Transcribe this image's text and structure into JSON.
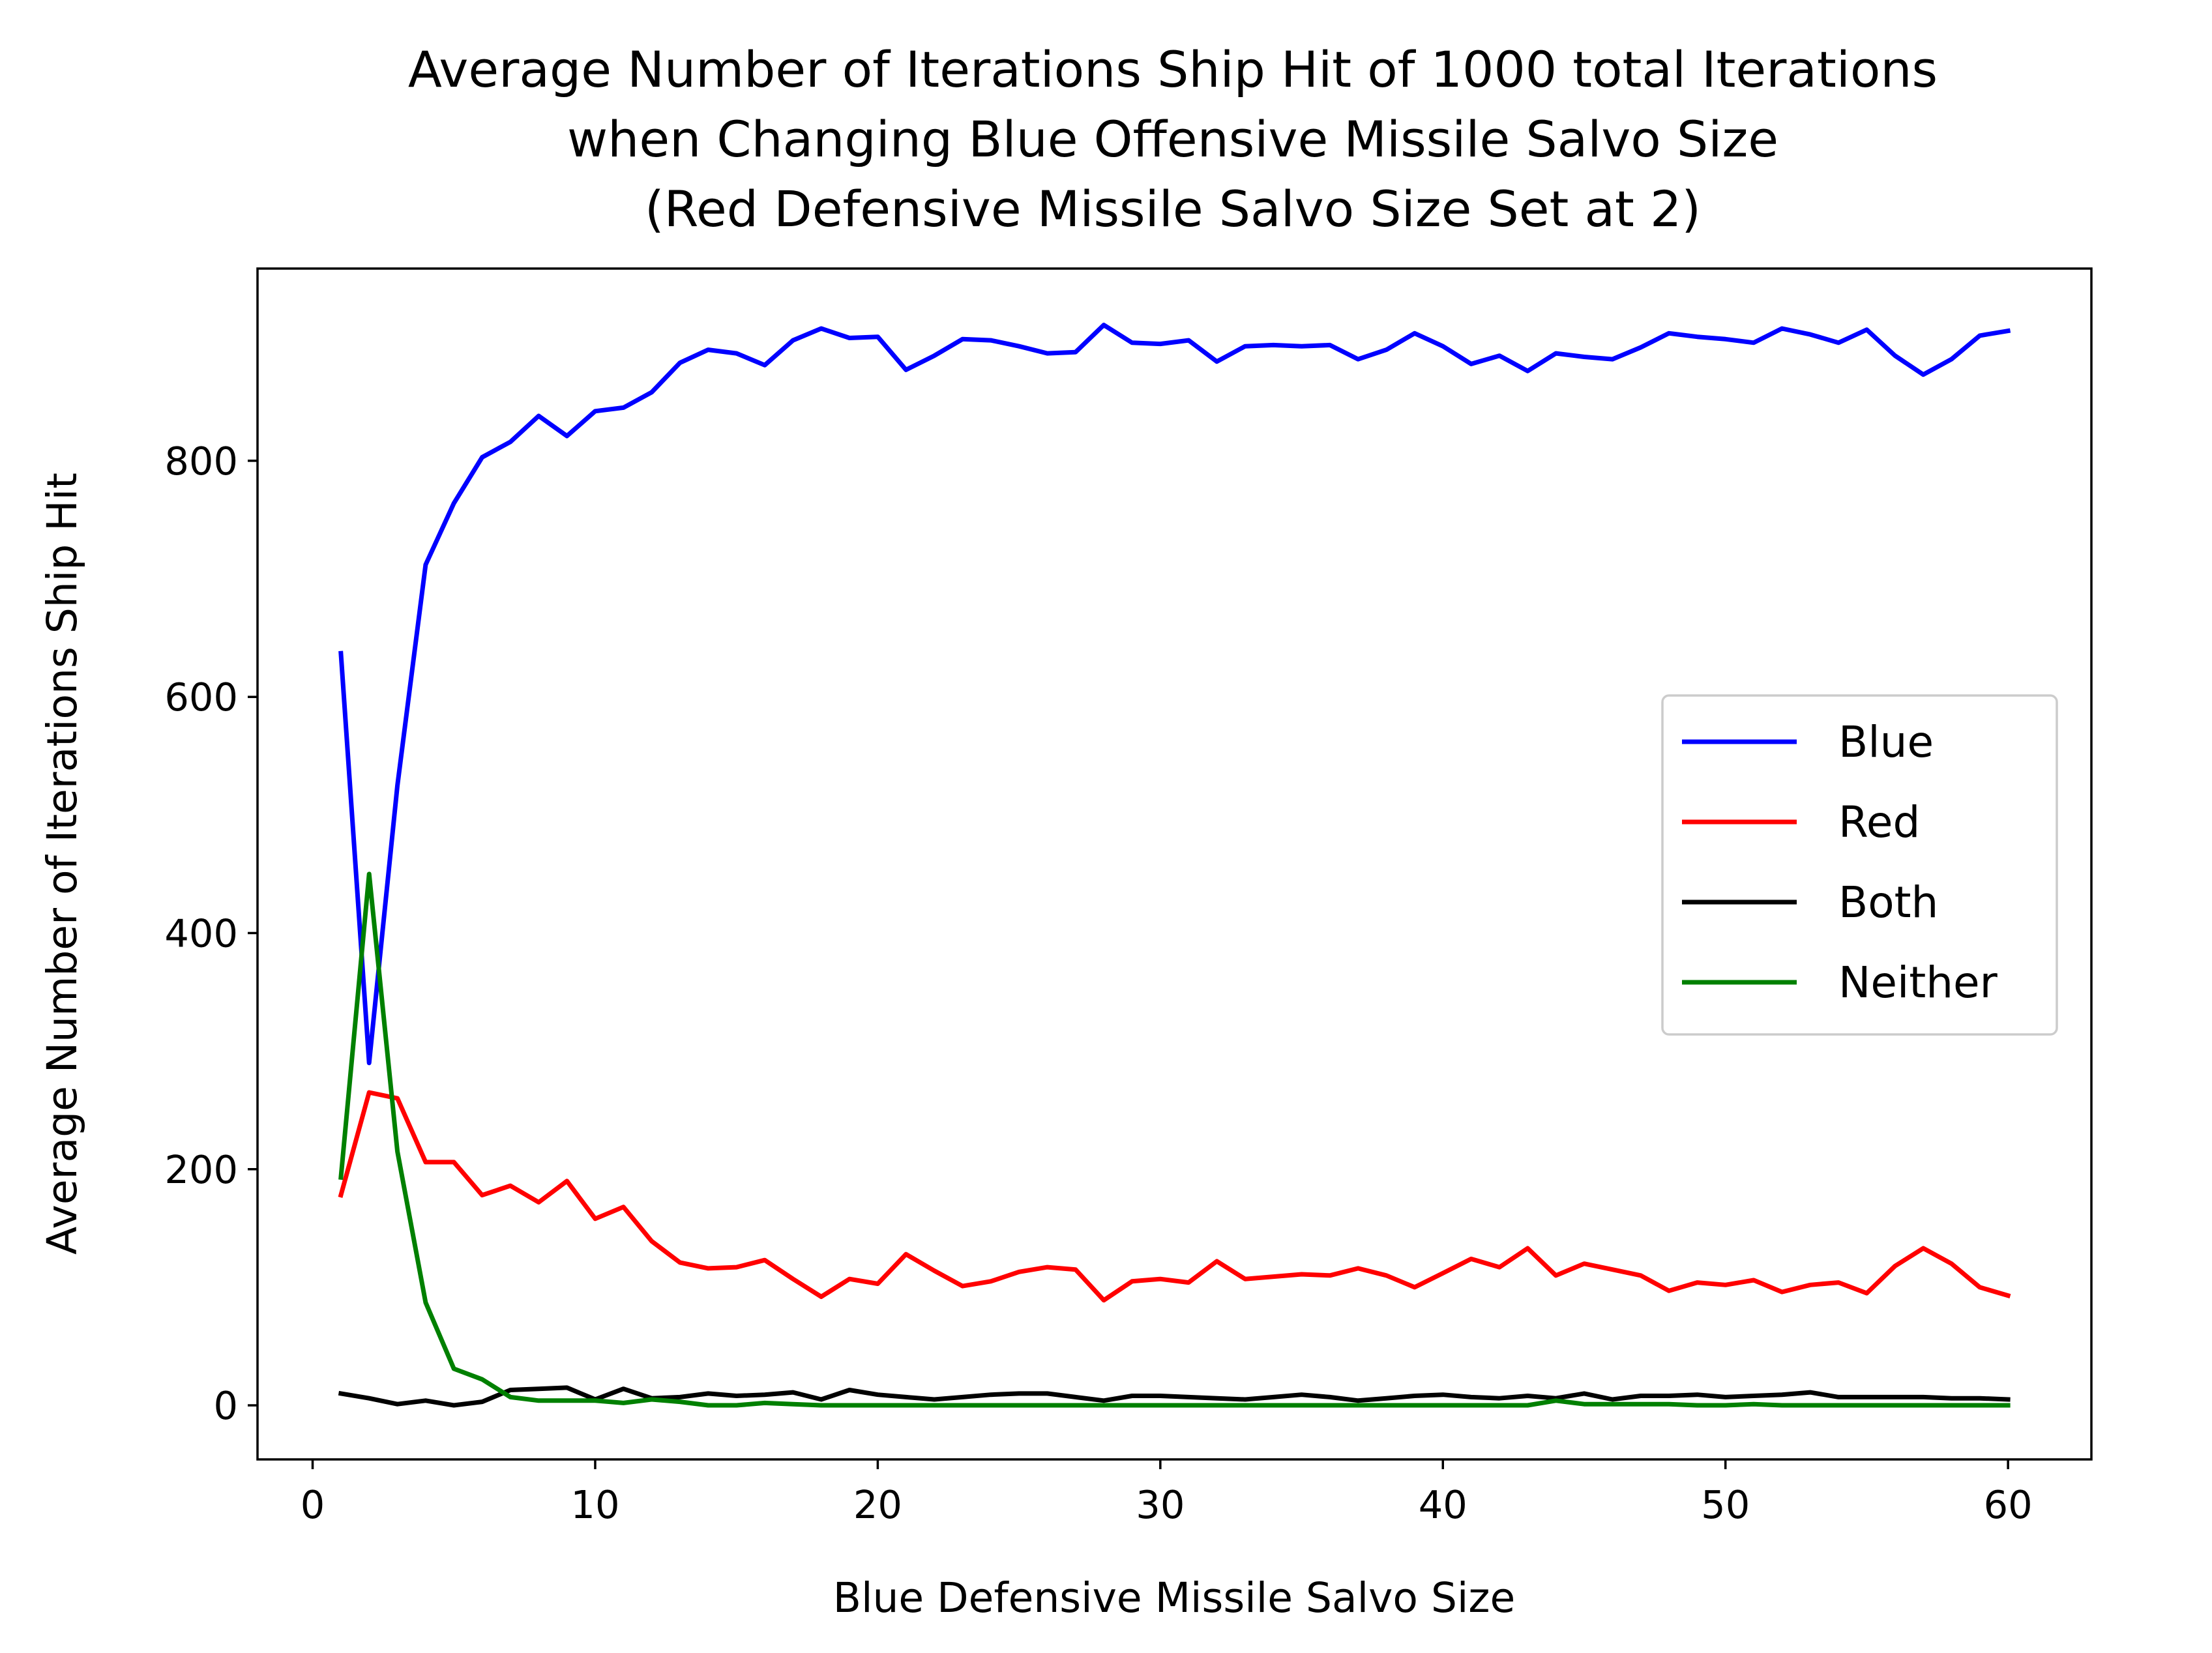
{
  "chart_data": {
    "type": "line",
    "title_lines": [
      "Average Number of Iterations Ship Hit of 1000 total Iterations",
      "when Changing Blue Offensive Missile Salvo Size",
      "(Red Defensive Missile Salvo Size Set at 2)"
    ],
    "xlabel": "Blue Defensive Missile Salvo Size",
    "ylabel": "Average Number of Iterations Ship Hit",
    "xlim": [
      -1.95,
      62.95
    ],
    "ylim": [
      -45.8,
      962.8
    ],
    "x_ticks": [
      0,
      10,
      20,
      30,
      40,
      50,
      60
    ],
    "x_tick_labels": [
      "0",
      "10",
      "20",
      "30",
      "40",
      "50",
      "60"
    ],
    "y_ticks": [
      0,
      200,
      400,
      600,
      800
    ],
    "y_tick_labels": [
      "0",
      "200",
      "400",
      "600",
      "800"
    ],
    "grid": false,
    "legend_position": "center-right",
    "x": [
      1,
      2,
      3,
      4,
      5,
      6,
      7,
      8,
      9,
      10,
      11,
      12,
      13,
      14,
      15,
      16,
      17,
      18,
      19,
      20,
      21,
      22,
      23,
      24,
      25,
      26,
      27,
      28,
      29,
      30,
      31,
      32,
      33,
      34,
      35,
      36,
      37,
      38,
      39,
      40,
      41,
      42,
      43,
      44,
      45,
      46,
      47,
      48,
      49,
      50,
      51,
      52,
      53,
      54,
      55,
      56,
      57,
      58,
      59,
      60
    ],
    "series": [
      {
        "name": "Blue",
        "color": "#0000ff",
        "values": [
          637,
          290,
          525,
          712,
          764,
          803,
          816,
          838,
          821,
          842,
          845,
          858,
          883,
          894,
          891,
          881,
          902,
          912,
          904,
          905,
          877,
          889,
          903,
          902,
          897,
          891,
          892,
          915,
          900,
          899,
          902,
          884,
          897,
          898,
          897,
          898,
          886,
          894,
          908,
          897,
          882,
          889,
          876,
          891,
          888,
          886,
          896,
          908,
          905,
          903,
          900,
          912,
          907,
          900,
          911,
          889,
          873,
          886,
          906,
          910
        ]
      },
      {
        "name": "Red",
        "color": "#ff0000",
        "values": [
          178,
          265,
          260,
          206,
          206,
          178,
          186,
          172,
          190,
          158,
          168,
          139,
          121,
          116,
          117,
          123,
          107,
          92,
          107,
          103,
          128,
          114,
          101,
          105,
          113,
          117,
          115,
          89,
          105,
          107,
          104,
          122,
          107,
          109,
          111,
          110,
          116,
          110,
          100,
          112,
          124,
          117,
          133,
          110,
          120,
          115,
          110,
          97,
          104,
          102,
          106,
          96,
          102,
          104,
          95,
          118,
          133,
          120,
          100,
          93
        ]
      },
      {
        "name": "Both",
        "color": "#000000",
        "values": [
          10,
          6,
          1,
          4,
          0,
          3,
          13,
          14,
          15,
          5,
          14,
          6,
          7,
          10,
          8,
          9,
          11,
          5,
          13,
          9,
          7,
          5,
          7,
          9,
          10,
          10,
          7,
          4,
          8,
          8,
          7,
          6,
          5,
          7,
          9,
          7,
          4,
          6,
          8,
          9,
          7,
          6,
          8,
          6,
          10,
          5,
          8,
          8,
          9,
          7,
          8,
          9,
          11,
          7,
          7,
          7,
          7,
          6,
          6,
          5
        ]
      },
      {
        "name": "Neither",
        "color": "#008000",
        "values": [
          193,
          450,
          215,
          87,
          31,
          22,
          7,
          4,
          4,
          4,
          2,
          5,
          3,
          0,
          0,
          2,
          1,
          0,
          0,
          0,
          0,
          0,
          0,
          0,
          0,
          0,
          0,
          0,
          0,
          0,
          0,
          0,
          0,
          0,
          0,
          0,
          0,
          0,
          0,
          0,
          0,
          0,
          0,
          4,
          1,
          1,
          1,
          1,
          0,
          0,
          1,
          0,
          0,
          0,
          0,
          0,
          0,
          0,
          0,
          0
        ]
      }
    ]
  }
}
